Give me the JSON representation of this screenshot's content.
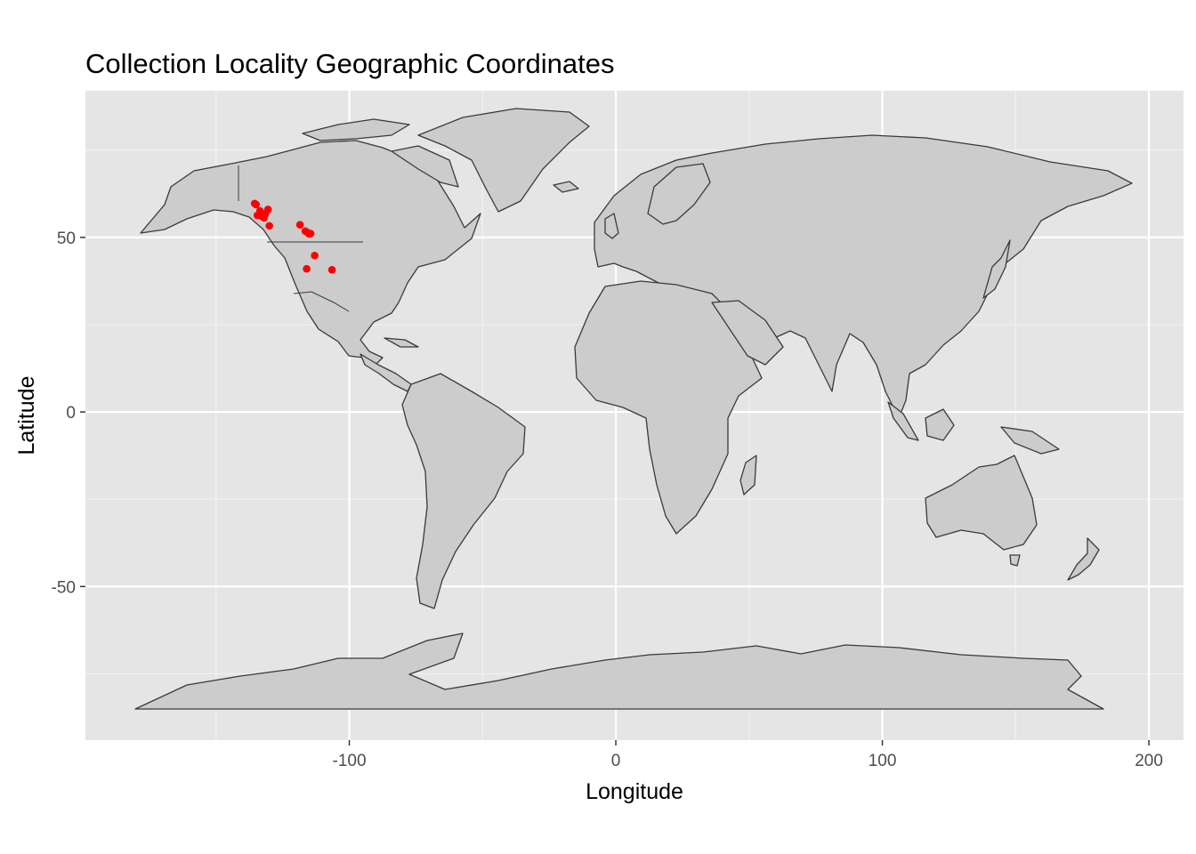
{
  "chart_data": {
    "type": "scatter",
    "title": "Collection Locality Geographic Coordinates",
    "xlabel": "Longitude",
    "ylabel": "Latitude",
    "xlim": [
      -199,
      213
    ],
    "ylim": [
      -94,
      92
    ],
    "x_ticks": [
      {
        "value": -100,
        "label": "-100"
      },
      {
        "value": 0,
        "label": "0"
      },
      {
        "value": 100,
        "label": "100"
      },
      {
        "value": 200,
        "label": "200"
      }
    ],
    "y_ticks": [
      {
        "value": -50,
        "label": "-50"
      },
      {
        "value": 0,
        "label": "0"
      },
      {
        "value": 50,
        "label": "50"
      }
    ],
    "x_minor": [
      -150,
      -50,
      50,
      150
    ],
    "y_minor": [
      -75,
      -25,
      25,
      75
    ],
    "grid": true,
    "background": "#e5e5e5",
    "land_color": "#cccccc",
    "point_color": "#ff0000",
    "series": [
      {
        "x": [
          -135.5,
          -135.0,
          -133.5,
          -134.5,
          -133.0,
          -131.5,
          -130.5,
          -132.0,
          -130.0,
          -118.5,
          -116.5,
          -115.5,
          -115.0,
          -114.5,
          -113.0,
          -116.0,
          -106.5
        ],
        "y": [
          59.7,
          59.4,
          57.6,
          56.3,
          56.1,
          56.7,
          58.0,
          55.6,
          53.3,
          53.6,
          51.8,
          51.3,
          51.0,
          51.1,
          44.8,
          41.0,
          40.7
        ]
      }
    ]
  }
}
